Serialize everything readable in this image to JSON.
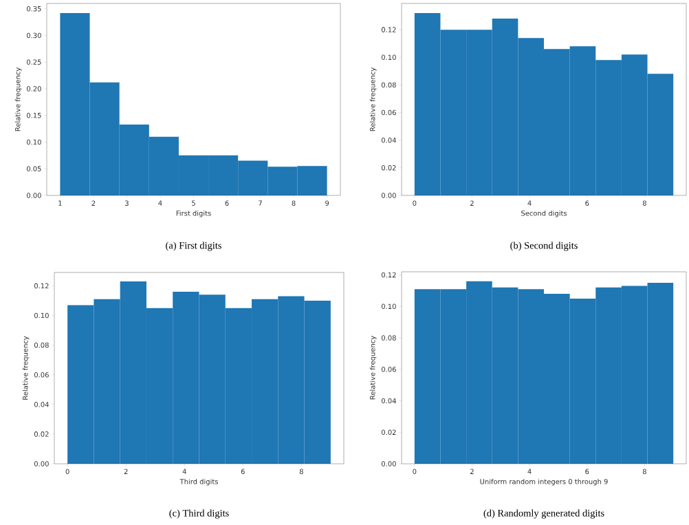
{
  "chart_data": [
    {
      "type": "histogram",
      "title": "(a) First digits",
      "xlabel": "First digits",
      "ylabel": "Relative frequency",
      "color": "#1f77b4",
      "bins": [
        1,
        1.889,
        2.778,
        3.667,
        4.556,
        5.444,
        6.333,
        7.222,
        8.111,
        9
      ],
      "values": [
        0.342,
        0.212,
        0.133,
        0.11,
        0.075,
        0.075,
        0.065,
        0.054,
        0.055
      ],
      "xlim": [
        0.6,
        9.4
      ],
      "ylim": [
        0,
        0.36
      ],
      "xticks": [
        1,
        2,
        3,
        4,
        5,
        6,
        7,
        8,
        9
      ],
      "yticks": [
        {
          "value": 0,
          "label": "0.00"
        },
        {
          "value": 0.05,
          "label": "0.05"
        },
        {
          "value": 0.1,
          "label": "0.10"
        },
        {
          "value": 0.15,
          "label": "0.15"
        },
        {
          "value": 0.2,
          "label": "0.20"
        },
        {
          "value": 0.25,
          "label": "0.25"
        },
        {
          "value": 0.3,
          "label": "0.30"
        },
        {
          "value": 0.35,
          "label": "0.35"
        }
      ]
    },
    {
      "type": "histogram",
      "title": "(b) Second digits",
      "xlabel": "Second digits",
      "ylabel": "Relative frequency",
      "color": "#1f77b4",
      "bins": [
        0,
        0.9,
        1.8,
        2.7,
        3.6,
        4.5,
        5.4,
        6.3,
        7.2,
        8.1,
        9
      ],
      "values": [
        0.132,
        0.12,
        0.12,
        0.128,
        0.114,
        0.106,
        0.108,
        0.098,
        0.102,
        0.088
      ],
      "xlim": [
        -0.45,
        9.45
      ],
      "ylim": [
        0,
        0.139
      ],
      "xticks": [
        0,
        2,
        4,
        6,
        8
      ],
      "yticks": [
        {
          "value": 0,
          "label": "0.00"
        },
        {
          "value": 0.02,
          "label": "0.02"
        },
        {
          "value": 0.04,
          "label": "0.04"
        },
        {
          "value": 0.06,
          "label": "0.06"
        },
        {
          "value": 0.08,
          "label": "0.08"
        },
        {
          "value": 0.1,
          "label": "0.10"
        },
        {
          "value": 0.12,
          "label": "0.12"
        }
      ]
    },
    {
      "type": "histogram",
      "title": "(c) Third digits",
      "xlabel": "Third digits",
      "ylabel": "Relative frequency",
      "color": "#1f77b4",
      "bins": [
        0,
        0.9,
        1.8,
        2.7,
        3.6,
        4.5,
        5.4,
        6.3,
        7.2,
        8.1,
        9
      ],
      "values": [
        0.107,
        0.111,
        0.123,
        0.105,
        0.116,
        0.114,
        0.105,
        0.111,
        0.113,
        0.11
      ],
      "xlim": [
        -0.45,
        9.45
      ],
      "ylim": [
        0,
        0.129
      ],
      "xticks": [
        0,
        2,
        4,
        6,
        8
      ],
      "yticks": [
        {
          "value": 0,
          "label": "0.00"
        },
        {
          "value": 0.02,
          "label": "0.02"
        },
        {
          "value": 0.04,
          "label": "0.04"
        },
        {
          "value": 0.06,
          "label": "0.06"
        },
        {
          "value": 0.08,
          "label": "0.08"
        },
        {
          "value": 0.1,
          "label": "0.10"
        },
        {
          "value": 0.12,
          "label": "0.12"
        }
      ]
    },
    {
      "type": "histogram",
      "title": "(d) Randomly generated digits",
      "xlabel": "Uniform random integers 0 through 9",
      "ylabel": "Relative frequency",
      "color": "#1f77b4",
      "bins": [
        0,
        0.9,
        1.8,
        2.7,
        3.6,
        4.5,
        5.4,
        6.3,
        7.2,
        8.1,
        9
      ],
      "values": [
        0.111,
        0.111,
        0.116,
        0.112,
        0.111,
        0.108,
        0.105,
        0.112,
        0.113,
        0.115
      ],
      "xlim": [
        -0.45,
        9.45
      ],
      "ylim": [
        0,
        0.122
      ],
      "xticks": [
        0,
        2,
        4,
        6,
        8
      ],
      "yticks": [
        {
          "value": 0,
          "label": "0.00"
        },
        {
          "value": 0.02,
          "label": "0.02"
        },
        {
          "value": 0.04,
          "label": "0.04"
        },
        {
          "value": 0.06,
          "label": "0.06"
        },
        {
          "value": 0.08,
          "label": "0.08"
        },
        {
          "value": 0.1,
          "label": "0.10"
        },
        {
          "value": 0.12,
          "label": "0.12"
        }
      ]
    }
  ]
}
